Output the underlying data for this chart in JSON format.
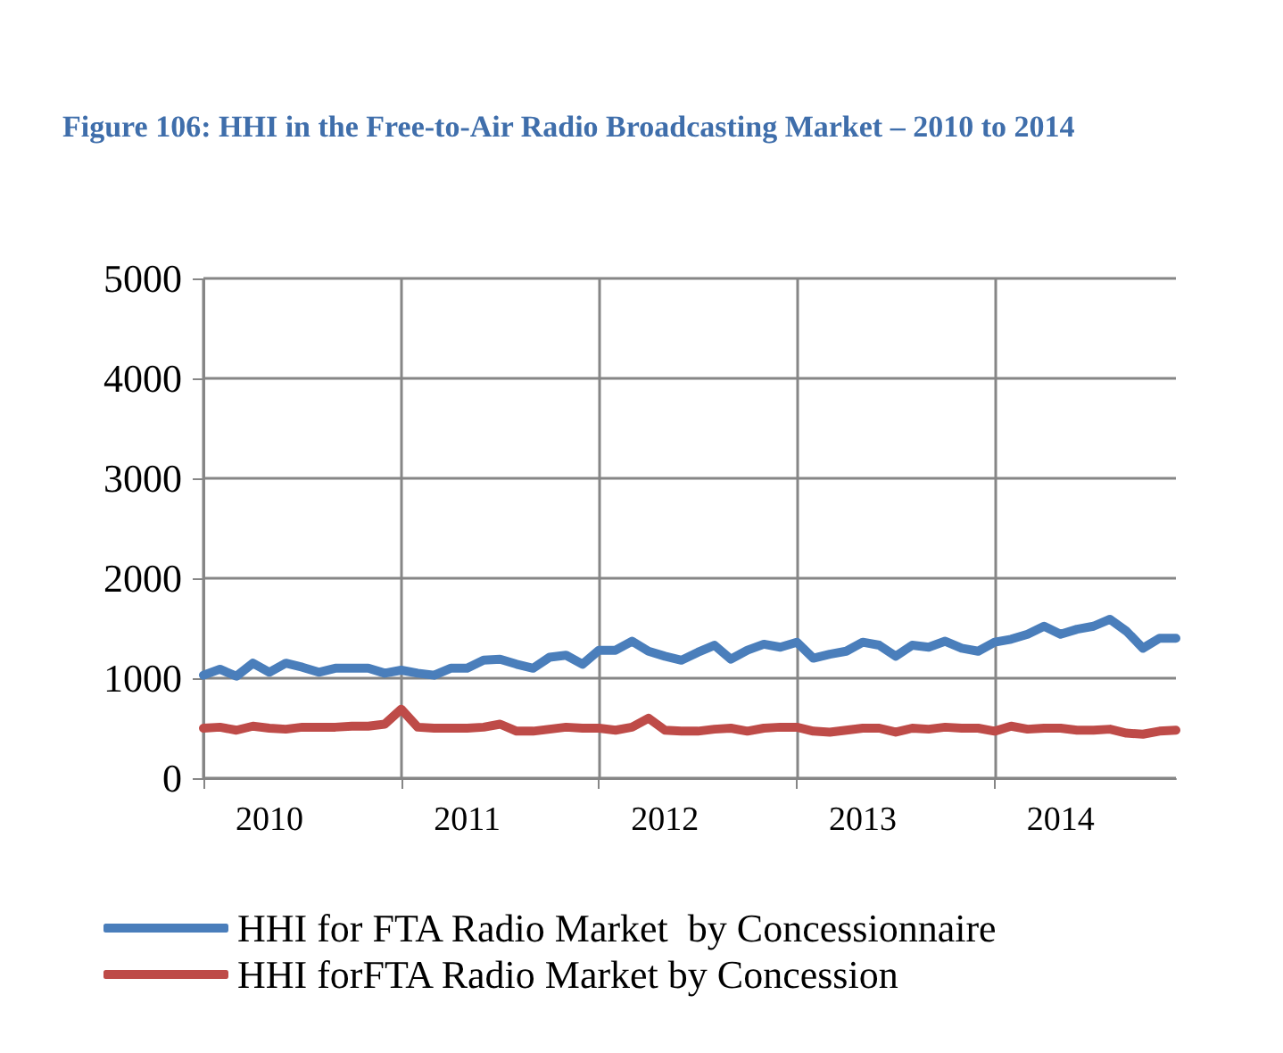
{
  "chart_data": {
    "type": "line",
    "title": "Figure 106: HHI in the Free-to-Air Radio Broadcasting Market – 2010 to 2014",
    "categories": [
      null,
      null,
      null,
      null,
      "2010",
      null,
      null,
      null,
      null,
      null,
      null,
      null,
      null,
      null,
      null,
      null,
      "2011",
      null,
      null,
      null,
      null,
      null,
      null,
      null,
      null,
      null,
      null,
      null,
      "2012",
      null,
      null,
      null,
      null,
      null,
      null,
      null,
      null,
      null,
      null,
      null,
      "2013",
      null,
      null,
      null,
      null,
      null,
      null,
      null,
      null,
      null,
      null,
      null,
      "2014",
      null,
      null,
      null,
      null,
      null,
      null,
      null
    ],
    "series": [
      {
        "name": "HHI for FTA Radio Market  by Concessionnaire",
        "color": "#4a7ebb",
        "values": [
          1030,
          1090,
          1020,
          1150,
          1060,
          1150,
          1110,
          1060,
          1100,
          1100,
          1100,
          1050,
          1080,
          1050,
          1030,
          1100,
          1100,
          1180,
          1190,
          1140,
          1100,
          1210,
          1230,
          1140,
          1280,
          1280,
          1370,
          1270,
          1220,
          1180,
          1260,
          1330,
          1190,
          1280,
          1340,
          1310,
          1360,
          1200,
          1240,
          1270,
          1360,
          1330,
          1220,
          1330,
          1310,
          1370,
          1300,
          1270,
          1360,
          1390,
          1440,
          1520,
          1440,
          1490,
          1520,
          1590,
          1470,
          1300,
          1400,
          1400
        ]
      },
      {
        "name": "HHI forFTA Radio Market by Concession",
        "color": "#be4b48",
        "values": [
          500,
          510,
          480,
          520,
          500,
          490,
          510,
          510,
          510,
          520,
          520,
          540,
          690,
          510,
          500,
          500,
          500,
          510,
          540,
          470,
          470,
          490,
          510,
          500,
          500,
          480,
          510,
          600,
          480,
          470,
          470,
          490,
          500,
          470,
          500,
          510,
          510,
          470,
          460,
          480,
          500,
          500,
          460,
          500,
          490,
          510,
          500,
          500,
          470,
          520,
          490,
          500,
          500,
          480,
          480,
          490,
          450,
          440,
          470,
          480
        ]
      }
    ],
    "ylim": [
      0,
      5000
    ],
    "yticks": [
      0,
      1000,
      2000,
      3000,
      4000,
      5000
    ],
    "grid": true,
    "legend": "bottom",
    "marker": "none",
    "line_style": "solid"
  }
}
